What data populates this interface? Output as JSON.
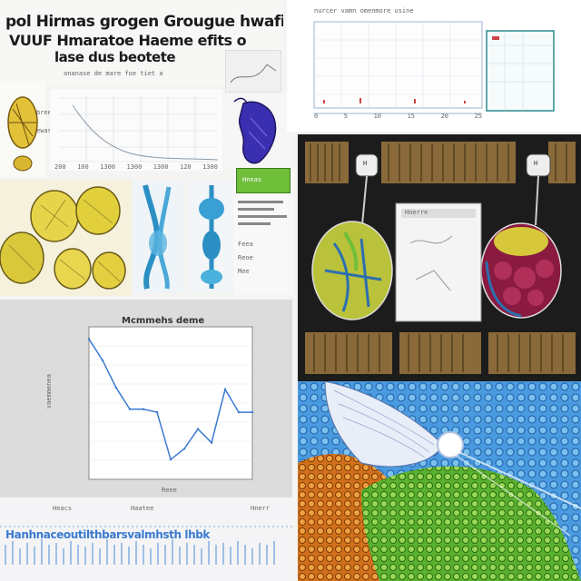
{
  "header": {
    "line1": "pol Hirmas grogen Grougue hwafi",
    "line2": "VUUF Hmaratoe Haeme efits o",
    "line3": "lase dus beotete"
  },
  "panel_tl": {
    "caption": "ananase de mare foe tiet a",
    "side_label_1": "bree",
    "side_label_2": "ewas",
    "x_ticks": [
      "200",
      "100",
      "1300",
      "1300",
      "1300",
      "120",
      "1300"
    ]
  },
  "panel_tr": {
    "top_caption": "nurcer vamn omenmore usine",
    "x_ticks": [
      "0",
      "5",
      "10",
      "15",
      "20",
      "25"
    ]
  },
  "panel_mid": {
    "label_a": "Feea",
    "label_b": "Reoe",
    "label_c": "Mee",
    "green_label": "Hnnas"
  },
  "panel_dark": {
    "note_title": "Hnerre",
    "left_label": "H",
    "right_label": "H"
  },
  "line_chart": {
    "title": "Mcmmehs deme",
    "ylabel": "vaemmenea",
    "xlabel": "Reee",
    "footer_left": "Heacs",
    "footer_mid": "Haatee",
    "footer_right": "Hnerr",
    "bottom_strip": "Hanhnaceoutilthbarsvalmhsth lhbk"
  },
  "chart_data": {
    "type": "line",
    "title": "Mcmmehs deme",
    "xlabel": "Reee",
    "ylabel": "vaemmenea",
    "x": [
      0,
      1,
      2,
      3,
      4,
      5,
      6,
      7,
      8,
      9,
      10,
      11,
      12
    ],
    "values": [
      0.92,
      0.78,
      0.6,
      0.46,
      0.46,
      0.44,
      0.13,
      0.2,
      0.33,
      0.24,
      0.59,
      0.44,
      0.44
    ],
    "ylim": [
      0,
      1
    ],
    "grid": true
  },
  "colors": {
    "accent_blue": "#3a7ad0",
    "yellow_fruit": "#e6d54a",
    "green_leaf": "#6fbf3a",
    "dark_bg": "#1c1c1c",
    "purple": "#3a2fb0"
  }
}
